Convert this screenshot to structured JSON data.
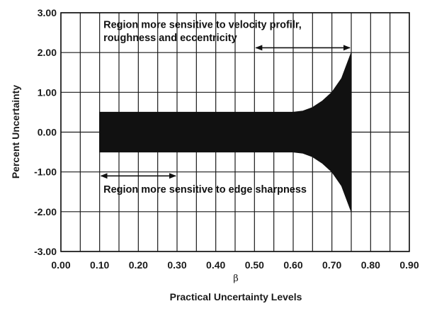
{
  "chart_data": {
    "type": "area",
    "xlabel": "Practical Uncertainty Levels",
    "xsymbol": "β",
    "ylabel": "Percent Uncertainty",
    "xlim": [
      0.0,
      0.9
    ],
    "ylim": [
      -3.0,
      3.0
    ],
    "x_ticks": [
      "0.00",
      "0.10",
      "0.20",
      "0.30",
      "0.40",
      "0.50",
      "0.60",
      "0.70",
      "0.80",
      "0.90"
    ],
    "y_ticks": [
      "3.00",
      "2.00",
      "1.00",
      "0.00",
      "-1.00",
      "-2.00",
      "-3.00"
    ],
    "x_gridlines": [
      0.0,
      0.05,
      0.1,
      0.15,
      0.2,
      0.25,
      0.3,
      0.35,
      0.4,
      0.45,
      0.5,
      0.55,
      0.6,
      0.65,
      0.7,
      0.75,
      0.8,
      0.85,
      0.9
    ],
    "y_gridlines": [
      -3.0,
      -2.0,
      -1.0,
      0.0,
      1.0,
      2.0,
      3.0
    ],
    "grid": true,
    "band_color": "#111111",
    "series": [
      {
        "x": [
          0.1,
          0.2,
          0.3,
          0.4,
          0.5,
          0.6,
          0.625,
          0.65,
          0.675,
          0.7,
          0.725,
          0.75
        ],
        "upper": [
          0.5,
          0.5,
          0.5,
          0.5,
          0.5,
          0.5,
          0.53,
          0.62,
          0.78,
          1.0,
          1.35,
          2.0
        ],
        "lower": [
          -0.5,
          -0.5,
          -0.5,
          -0.5,
          -0.5,
          -0.5,
          -0.53,
          -0.62,
          -0.78,
          -1.0,
          -1.35,
          -2.0
        ]
      }
    ],
    "annotations": [
      {
        "lines": [
          "Region more sensitive to velocity profilr,",
          "roughness and eccentricity"
        ],
        "x": 0.11,
        "y": 2.62,
        "line_step": 0.33
      },
      {
        "lines": [
          "Region more sensitive to edge sharpness"
        ],
        "x": 0.11,
        "y": -1.52,
        "line_step": 0.33
      }
    ],
    "arrows": [
      {
        "x1": 0.5,
        "x2": 0.75,
        "y": 2.12
      },
      {
        "x1": 0.1,
        "x2": 0.3,
        "y": -1.1
      }
    ]
  }
}
